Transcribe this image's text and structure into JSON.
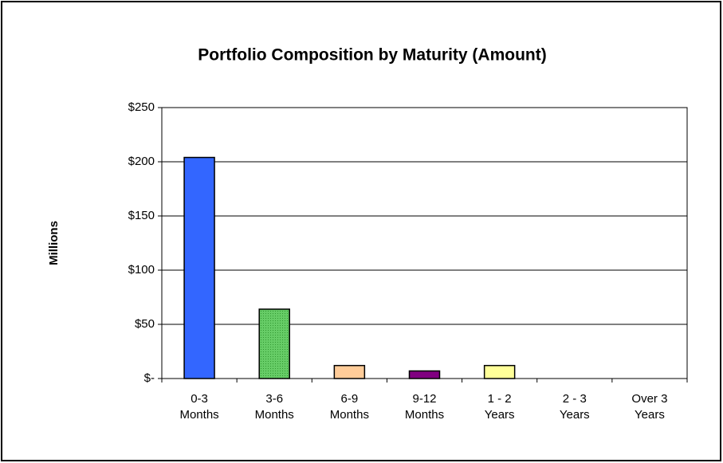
{
  "chart_data": {
    "type": "bar",
    "title": "Portfolio Composition by Maturity (Amount)",
    "ylabel": "Millions",
    "categories": [
      "0-3 Months",
      "3-6 Months",
      "6-9 Months",
      "9-12 Months",
      "1 - 2 Years",
      "2 - 3 Years",
      "Over 3 Years"
    ],
    "values": [
      204,
      64,
      12,
      7,
      12,
      0,
      0
    ],
    "colors": [
      "#3366ff",
      "#66cc66",
      "#ffcc99",
      "#800080",
      "#ffff99",
      "#ffffff",
      "#ffffff"
    ],
    "ylim": [
      0,
      250
    ],
    "yticks": [
      {
        "value": 0,
        "label": "$-"
      },
      {
        "value": 50,
        "label": "$50"
      },
      {
        "value": 100,
        "label": "$100"
      },
      {
        "value": 150,
        "label": "$150"
      },
      {
        "value": 200,
        "label": "$200"
      },
      {
        "value": 250,
        "label": "$250"
      }
    ],
    "grid": true
  }
}
